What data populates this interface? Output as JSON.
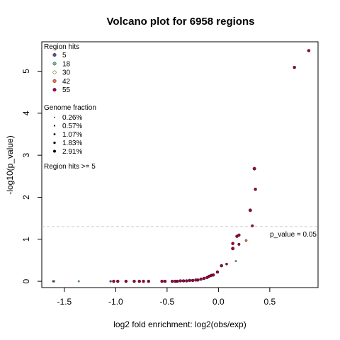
{
  "chart_data": {
    "type": "scatter",
    "title": "Volcano plot for 6958 regions",
    "xlabel": "log2 fold enrichment: log2(obs/exp)",
    "ylabel": "-log10(p_value)",
    "xlim": [
      -1.72,
      0.97
    ],
    "ylim": [
      -0.15,
      5.7
    ],
    "xticks": [
      -1.5,
      -1.0,
      -0.5,
      0.0,
      0.5
    ],
    "xtick_labels": [
      "-1.5",
      "-1.0",
      "-0.5",
      "0.0",
      "0.5"
    ],
    "yticks": [
      0,
      1,
      2,
      3,
      4,
      5
    ],
    "ytick_labels": [
      "0",
      "1",
      "2",
      "3",
      "4",
      "5"
    ],
    "grid": false,
    "threshold": {
      "y": 1.30103,
      "label": "p_value = 0.05",
      "color": "#cccccc"
    },
    "legends": {
      "hits": {
        "title": "Region hits",
        "items": [
          {
            "label": "5",
            "color": "#5e4fa2"
          },
          {
            "label": "18",
            "color": "#66c2a5"
          },
          {
            "label": "30",
            "color": "#ffffbf"
          },
          {
            "label": "42",
            "color": "#f46d43"
          },
          {
            "label": "55",
            "color": "#9e0142"
          }
        ]
      },
      "fraction": {
        "title": "Genome fraction",
        "items": [
          {
            "label": "0.26%",
            "size": 1.2
          },
          {
            "label": "0.57%",
            "size": 1.6
          },
          {
            "label": "1.07%",
            "size": 2.0
          },
          {
            "label": "1.83%",
            "size": 2.4
          },
          {
            "label": "2.91%",
            "size": 2.8
          }
        ]
      },
      "note": "Region hits >= 5"
    },
    "points": [
      {
        "x": 0.88,
        "y": 5.49,
        "color": "#9e0142",
        "size": 2.0
      },
      {
        "x": 0.74,
        "y": 5.09,
        "color": "#9e0142",
        "size": 2.0
      },
      {
        "x": 0.35,
        "y": 2.68,
        "color": "#9e0142",
        "size": 2.2
      },
      {
        "x": 0.36,
        "y": 2.19,
        "color": "#9e0142",
        "size": 2.0
      },
      {
        "x": 0.31,
        "y": 1.69,
        "color": "#9e0142",
        "size": 2.2
      },
      {
        "x": 0.33,
        "y": 1.32,
        "color": "#9e0142",
        "size": 1.8
      },
      {
        "x": 0.18,
        "y": 1.07,
        "color": "#9e0142",
        "size": 2.0
      },
      {
        "x": 0.2,
        "y": 1.1,
        "color": "#9e0142",
        "size": 2.0
      },
      {
        "x": 0.27,
        "y": 0.97,
        "color": "#f46d43",
        "size": 1.6
      },
      {
        "x": 0.14,
        "y": 0.9,
        "color": "#9e0142",
        "size": 2.0
      },
      {
        "x": 0.2,
        "y": 0.88,
        "color": "#9e0142",
        "size": 1.8
      },
      {
        "x": 0.14,
        "y": 0.78,
        "color": "#9e0142",
        "size": 2.2
      },
      {
        "x": 0.17,
        "y": 0.48,
        "color": "#66c2a5",
        "size": 1.2
      },
      {
        "x": 0.08,
        "y": 0.41,
        "color": "#9e0142",
        "size": 1.6
      },
      {
        "x": 0.03,
        "y": 0.37,
        "color": "#9e0142",
        "size": 2.0
      },
      {
        "x": -0.01,
        "y": 0.22,
        "color": "#9e0142",
        "size": 2.0
      },
      {
        "x": -0.05,
        "y": 0.15,
        "color": "#9e0142",
        "size": 2.0
      },
      {
        "x": -0.07,
        "y": 0.14,
        "color": "#9e0142",
        "size": 2.0
      },
      {
        "x": -0.09,
        "y": 0.12,
        "color": "#9e0142",
        "size": 2.0
      },
      {
        "x": -0.11,
        "y": 0.09,
        "color": "#9e0142",
        "size": 2.0
      },
      {
        "x": -0.14,
        "y": 0.07,
        "color": "#9e0142",
        "size": 2.0
      },
      {
        "x": -0.17,
        "y": 0.05,
        "color": "#9e0142",
        "size": 2.0
      },
      {
        "x": -0.2,
        "y": 0.03,
        "color": "#9e0142",
        "size": 2.0
      },
      {
        "x": -0.22,
        "y": 0.03,
        "color": "#9e0142",
        "size": 2.0
      },
      {
        "x": -0.25,
        "y": 0.02,
        "color": "#9e0142",
        "size": 2.0
      },
      {
        "x": -0.28,
        "y": 0.02,
        "color": "#9e0142",
        "size": 2.0
      },
      {
        "x": -0.31,
        "y": 0.01,
        "color": "#9e0142",
        "size": 2.0
      },
      {
        "x": -0.34,
        "y": 0.01,
        "color": "#9e0142",
        "size": 2.0
      },
      {
        "x": -0.37,
        "y": 0.01,
        "color": "#9e0142",
        "size": 2.0
      },
      {
        "x": -0.4,
        "y": 0.0,
        "color": "#9e0142",
        "size": 2.0
      },
      {
        "x": -0.42,
        "y": 0.0,
        "color": "#9e0142",
        "size": 2.0
      },
      {
        "x": -0.45,
        "y": 0.0,
        "color": "#9e0142",
        "size": 2.0
      },
      {
        "x": -0.52,
        "y": 0.0,
        "color": "#9e0142",
        "size": 2.0
      },
      {
        "x": -0.55,
        "y": 0.0,
        "color": "#9e0142",
        "size": 2.0
      },
      {
        "x": -0.68,
        "y": 0.0,
        "color": "#9e0142",
        "size": 2.0
      },
      {
        "x": -0.73,
        "y": 0.0,
        "color": "#9e0142",
        "size": 2.0
      },
      {
        "x": -0.77,
        "y": 0.0,
        "color": "#9e0142",
        "size": 2.0
      },
      {
        "x": -0.82,
        "y": 0.0,
        "color": "#9e0142",
        "size": 2.0
      },
      {
        "x": -0.9,
        "y": 0.0,
        "color": "#9e0142",
        "size": 2.0
      },
      {
        "x": -0.98,
        "y": 0.0,
        "color": "#9e0142",
        "size": 2.0
      },
      {
        "x": -1.02,
        "y": 0.0,
        "color": "#9e0142",
        "size": 2.0
      },
      {
        "x": -1.05,
        "y": 0.0,
        "color": "#5e4fa2",
        "size": 1.4
      },
      {
        "x": -1.36,
        "y": 0.0,
        "color": "#66c2a5",
        "size": 1.2
      },
      {
        "x": -1.6,
        "y": 0.0,
        "color": "#66c2a5",
        "size": 1.4
      },
      {
        "x": -1.61,
        "y": 0.0,
        "color": "#5e4fa2",
        "size": 1.2
      }
    ]
  }
}
